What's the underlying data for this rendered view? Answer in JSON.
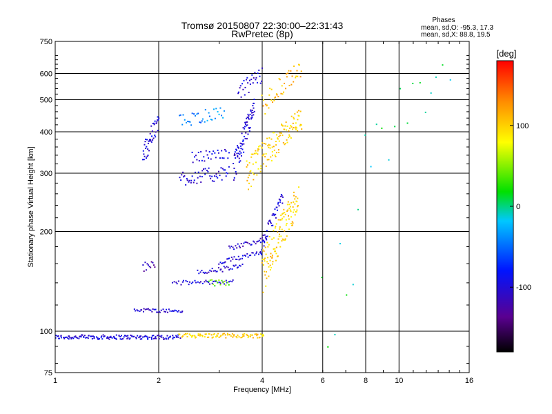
{
  "chart_data": {
    "type": "scatter",
    "title": "Tromsø 20150807 22:30:00–22:31:43",
    "subtitle": "RwPretec (8p)",
    "xlabel": "Frequency [MHz]",
    "ylabel": "Stationary phase Virtual Height [km]",
    "x_scale": "log",
    "y_scale": "log",
    "xlim": [
      1,
      16
    ],
    "ylim": [
      75,
      750
    ],
    "x_ticks": [
      1,
      2,
      4,
      6,
      8,
      10,
      16
    ],
    "y_ticks": [
      75,
      100,
      200,
      300,
      400,
      500,
      600,
      750
    ],
    "grid": true,
    "phases_box": {
      "heading": "Phases",
      "line_o": "mean, sd,O: -95.3, 17.3",
      "line_x": "mean, sd,X:  88.8, 19.5"
    },
    "colorbar": {
      "label": "[deg]",
      "ticks": [
        100,
        0,
        -100
      ],
      "range": [
        -180,
        180
      ]
    },
    "traces": [
      {
        "x0": 1.0,
        "x1": 2.3,
        "y0": 96,
        "y1": 96,
        "n": 150,
        "phase": -100,
        "jitter": 1.5
      },
      {
        "x0": 2.3,
        "x1": 4.05,
        "y0": 97,
        "y1": 97,
        "n": 90,
        "phase": 100,
        "jitter": 1.5
      },
      {
        "x0": 1.7,
        "x1": 2.35,
        "y0": 116,
        "y1": 115,
        "n": 40,
        "phase": -100,
        "jitter": 1.5
      },
      {
        "x0": 1.8,
        "x1": 1.95,
        "y0": 155,
        "y1": 160,
        "n": 12,
        "phase": -120,
        "jitter": 6
      },
      {
        "x0": 2.2,
        "x1": 3.3,
        "y0": 140,
        "y1": 141,
        "n": 40,
        "phase": -100,
        "jitter": 2
      },
      {
        "x0": 2.6,
        "x1": 3.5,
        "y0": 150,
        "y1": 157,
        "n": 35,
        "phase": -100,
        "jitter": 3
      },
      {
        "x0": 3.0,
        "x1": 4.0,
        "y0": 160,
        "y1": 175,
        "n": 35,
        "phase": -100,
        "jitter": 3
      },
      {
        "x0": 3.2,
        "x1": 4.1,
        "y0": 178,
        "y1": 190,
        "n": 30,
        "phase": -105,
        "jitter": 3
      },
      {
        "x0": 3.95,
        "x1": 4.6,
        "y0": 175,
        "y1": 255,
        "n": 45,
        "phase": -100,
        "jitter": 10
      },
      {
        "x0": 4.0,
        "x1": 5.1,
        "y0": 150,
        "y1": 250,
        "n": 120,
        "phase": 100,
        "jitter": 25
      },
      {
        "x0": 2.8,
        "x1": 3.2,
        "y0": 140,
        "y1": 140,
        "n": 15,
        "phase": 40,
        "jitter": 3
      },
      {
        "x0": 1.8,
        "x1": 2.0,
        "y0": 340,
        "y1": 430,
        "n": 45,
        "phase": -100,
        "jitter": 30
      },
      {
        "x0": 2.3,
        "x1": 3.2,
        "y0": 290,
        "y1": 300,
        "n": 50,
        "phase": -100,
        "jitter": 15
      },
      {
        "x0": 2.5,
        "x1": 3.2,
        "y0": 335,
        "y1": 345,
        "n": 30,
        "phase": -100,
        "jitter": 12
      },
      {
        "x0": 2.3,
        "x1": 3.1,
        "y0": 430,
        "y1": 460,
        "n": 35,
        "phase": -40,
        "jitter": 20
      },
      {
        "x0": 3.3,
        "x1": 3.8,
        "y0": 300,
        "y1": 470,
        "n": 80,
        "phase": -100,
        "jitter": 35
      },
      {
        "x0": 3.4,
        "x1": 4.0,
        "y0": 520,
        "y1": 600,
        "n": 30,
        "phase": -100,
        "jitter": 35
      },
      {
        "x0": 3.6,
        "x1": 5.2,
        "y0": 295,
        "y1": 440,
        "n": 130,
        "phase": 100,
        "jitter": 35
      },
      {
        "x0": 4.0,
        "x1": 5.2,
        "y0": 480,
        "y1": 620,
        "n": 45,
        "phase": 110,
        "jitter": 40
      },
      {
        "x0": 6.0,
        "x1": 14.0,
        "y0": 150,
        "y1": 600,
        "n": 22,
        "phase": 0,
        "jitter": 120
      }
    ]
  }
}
